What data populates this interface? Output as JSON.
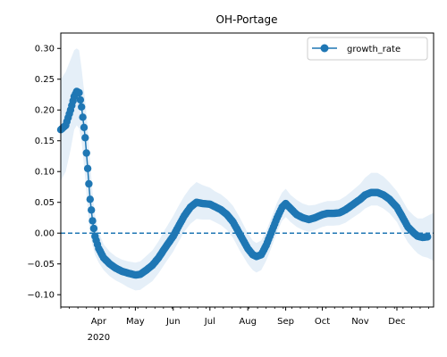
{
  "chart_data": {
    "type": "line",
    "title": "OH-Portage",
    "xlabel": "",
    "ylabel": "",
    "x_range": [
      "2020-03-01",
      "2020-12-31"
    ],
    "ylim": [
      -0.12,
      0.325
    ],
    "yticks": [
      -0.1,
      -0.05,
      0.0,
      0.05,
      0.1,
      0.15,
      0.2,
      0.25,
      0.3
    ],
    "ytick_labels": [
      "−0.10",
      "−0.05",
      "0.00",
      "0.05",
      "0.10",
      "0.15",
      "0.20",
      "0.25",
      "0.30"
    ],
    "xticks": [
      {
        "date": "2020-04-01",
        "label": "Apr",
        "sublabel": "2020"
      },
      {
        "date": "2020-05-01",
        "label": "May"
      },
      {
        "date": "2020-06-01",
        "label": "Jun"
      },
      {
        "date": "2020-07-01",
        "label": "Jul"
      },
      {
        "date": "2020-08-01",
        "label": "Aug"
      },
      {
        "date": "2020-09-01",
        "label": "Sep"
      },
      {
        "date": "2020-10-01",
        "label": "Oct"
      },
      {
        "date": "2020-11-01",
        "label": "Nov"
      },
      {
        "date": "2020-12-01",
        "label": "Dec"
      }
    ],
    "reference_line": {
      "y": 0.0,
      "style": "dashed"
    },
    "legend": {
      "position": "top-right",
      "entries": [
        "growth_rate"
      ]
    },
    "grid": false,
    "colors": {
      "line": "#1f77b4",
      "band": "#c6dbef"
    },
    "series": [
      {
        "name": "growth_rate",
        "points": [
          [
            "2020-03-01",
            0.168
          ],
          [
            "2020-03-05",
            0.175
          ],
          [
            "2020-03-09",
            0.2
          ],
          [
            "2020-03-12",
            0.222
          ],
          [
            "2020-03-14",
            0.23
          ],
          [
            "2020-03-16",
            0.228
          ],
          [
            "2020-03-18",
            0.205
          ],
          [
            "2020-03-21",
            0.155
          ],
          [
            "2020-03-23",
            0.105
          ],
          [
            "2020-03-25",
            0.055
          ],
          [
            "2020-03-27",
            0.02
          ],
          [
            "2020-03-29",
            -0.005
          ],
          [
            "2020-04-01",
            -0.025
          ],
          [
            "2020-04-05",
            -0.04
          ],
          [
            "2020-04-10",
            -0.05
          ],
          [
            "2020-04-15",
            -0.057
          ],
          [
            "2020-04-20",
            -0.062
          ],
          [
            "2020-04-25",
            -0.065
          ],
          [
            "2020-05-01",
            -0.068
          ],
          [
            "2020-05-05",
            -0.067
          ],
          [
            "2020-05-10",
            -0.06
          ],
          [
            "2020-05-15",
            -0.052
          ],
          [
            "2020-05-20",
            -0.04
          ],
          [
            "2020-05-25",
            -0.025
          ],
          [
            "2020-06-01",
            -0.005
          ],
          [
            "2020-06-05",
            0.01
          ],
          [
            "2020-06-10",
            0.028
          ],
          [
            "2020-06-15",
            0.042
          ],
          [
            "2020-06-20",
            0.05
          ],
          [
            "2020-06-25",
            0.048
          ],
          [
            "2020-07-01",
            0.047
          ],
          [
            "2020-07-05",
            0.043
          ],
          [
            "2020-07-10",
            0.038
          ],
          [
            "2020-07-15",
            0.03
          ],
          [
            "2020-07-20",
            0.018
          ],
          [
            "2020-07-25",
            0.0
          ],
          [
            "2020-08-01",
            -0.025
          ],
          [
            "2020-08-05",
            -0.035
          ],
          [
            "2020-08-08",
            -0.038
          ],
          [
            "2020-08-12",
            -0.035
          ],
          [
            "2020-08-16",
            -0.02
          ],
          [
            "2020-08-20",
            0.0
          ],
          [
            "2020-08-25",
            0.025
          ],
          [
            "2020-08-29",
            0.042
          ],
          [
            "2020-09-01",
            0.048
          ],
          [
            "2020-09-05",
            0.04
          ],
          [
            "2020-09-10",
            0.03
          ],
          [
            "2020-09-15",
            0.025
          ],
          [
            "2020-09-20",
            0.022
          ],
          [
            "2020-09-25",
            0.025
          ],
          [
            "2020-10-01",
            0.03
          ],
          [
            "2020-10-05",
            0.032
          ],
          [
            "2020-10-10",
            0.032
          ],
          [
            "2020-10-15",
            0.033
          ],
          [
            "2020-10-20",
            0.038
          ],
          [
            "2020-10-25",
            0.045
          ],
          [
            "2020-11-01",
            0.055
          ],
          [
            "2020-11-05",
            0.062
          ],
          [
            "2020-11-10",
            0.066
          ],
          [
            "2020-11-15",
            0.066
          ],
          [
            "2020-11-20",
            0.062
          ],
          [
            "2020-11-25",
            0.055
          ],
          [
            "2020-12-01",
            0.042
          ],
          [
            "2020-12-05",
            0.028
          ],
          [
            "2020-12-10",
            0.01
          ],
          [
            "2020-12-15",
            0.0
          ],
          [
            "2020-12-18",
            -0.005
          ],
          [
            "2020-12-22",
            -0.007
          ],
          [
            "2020-12-26",
            -0.006
          ]
        ],
        "band": [
          [
            "2020-03-01",
            0.085,
            0.25
          ],
          [
            "2020-03-05",
            0.1,
            0.262
          ],
          [
            "2020-03-09",
            0.135,
            0.282
          ],
          [
            "2020-03-12",
            0.168,
            0.297
          ],
          [
            "2020-03-14",
            0.175,
            0.3
          ],
          [
            "2020-03-16",
            0.17,
            0.297
          ],
          [
            "2020-03-18",
            0.15,
            0.268
          ],
          [
            "2020-03-21",
            0.09,
            0.215
          ],
          [
            "2020-03-23",
            0.04,
            0.17
          ],
          [
            "2020-03-25",
            0.0,
            0.115
          ],
          [
            "2020-03-27",
            -0.02,
            0.065
          ],
          [
            "2020-03-29",
            -0.035,
            0.03
          ],
          [
            "2020-04-01",
            -0.048,
            0.002
          ],
          [
            "2020-04-05",
            -0.06,
            -0.018
          ],
          [
            "2020-04-10",
            -0.07,
            -0.03
          ],
          [
            "2020-04-15",
            -0.077,
            -0.038
          ],
          [
            "2020-04-20",
            -0.082,
            -0.043
          ],
          [
            "2020-04-25",
            -0.088,
            -0.046
          ],
          [
            "2020-05-01",
            -0.093,
            -0.048
          ],
          [
            "2020-05-05",
            -0.092,
            -0.046
          ],
          [
            "2020-05-10",
            -0.085,
            -0.037
          ],
          [
            "2020-05-15",
            -0.078,
            -0.028
          ],
          [
            "2020-05-20",
            -0.065,
            -0.013
          ],
          [
            "2020-05-25",
            -0.05,
            0.005
          ],
          [
            "2020-06-01",
            -0.03,
            0.028
          ],
          [
            "2020-06-05",
            -0.015,
            0.043
          ],
          [
            "2020-06-10",
            0.002,
            0.06
          ],
          [
            "2020-06-15",
            0.015,
            0.074
          ],
          [
            "2020-06-20",
            0.023,
            0.083
          ],
          [
            "2020-06-25",
            0.022,
            0.078
          ],
          [
            "2020-07-01",
            0.022,
            0.074
          ],
          [
            "2020-07-05",
            0.018,
            0.068
          ],
          [
            "2020-07-10",
            0.013,
            0.063
          ],
          [
            "2020-07-15",
            0.005,
            0.055
          ],
          [
            "2020-07-20",
            -0.008,
            0.044
          ],
          [
            "2020-07-25",
            -0.027,
            0.027
          ],
          [
            "2020-08-01",
            -0.05,
            0.0
          ],
          [
            "2020-08-05",
            -0.06,
            -0.012
          ],
          [
            "2020-08-08",
            -0.064,
            -0.016
          ],
          [
            "2020-08-12",
            -0.06,
            -0.012
          ],
          [
            "2020-08-16",
            -0.045,
            0.003
          ],
          [
            "2020-08-20",
            -0.025,
            0.024
          ],
          [
            "2020-08-25",
            0.002,
            0.05
          ],
          [
            "2020-08-29",
            0.02,
            0.066
          ],
          [
            "2020-09-01",
            0.026,
            0.072
          ],
          [
            "2020-09-05",
            0.018,
            0.062
          ],
          [
            "2020-09-10",
            0.01,
            0.054
          ],
          [
            "2020-09-15",
            0.005,
            0.048
          ],
          [
            "2020-09-20",
            0.002,
            0.045
          ],
          [
            "2020-09-25",
            0.005,
            0.046
          ],
          [
            "2020-10-01",
            0.01,
            0.05
          ],
          [
            "2020-10-05",
            0.012,
            0.052
          ],
          [
            "2020-10-10",
            0.012,
            0.052
          ],
          [
            "2020-10-15",
            0.013,
            0.054
          ],
          [
            "2020-10-20",
            0.017,
            0.06
          ],
          [
            "2020-10-25",
            0.024,
            0.068
          ],
          [
            "2020-11-01",
            0.033,
            0.08
          ],
          [
            "2020-11-05",
            0.04,
            0.09
          ],
          [
            "2020-11-10",
            0.045,
            0.098
          ],
          [
            "2020-11-15",
            0.045,
            0.098
          ],
          [
            "2020-11-20",
            0.04,
            0.092
          ],
          [
            "2020-11-25",
            0.032,
            0.082
          ],
          [
            "2020-12-01",
            0.018,
            0.068
          ],
          [
            "2020-12-05",
            0.002,
            0.055
          ],
          [
            "2020-12-10",
            -0.015,
            0.038
          ],
          [
            "2020-12-15",
            -0.027,
            0.028
          ],
          [
            "2020-12-18",
            -0.033,
            0.024
          ],
          [
            "2020-12-22",
            -0.038,
            0.024
          ],
          [
            "2020-12-26",
            -0.04,
            0.028
          ],
          [
            "2020-12-31",
            -0.045,
            0.033
          ]
        ]
      }
    ]
  }
}
